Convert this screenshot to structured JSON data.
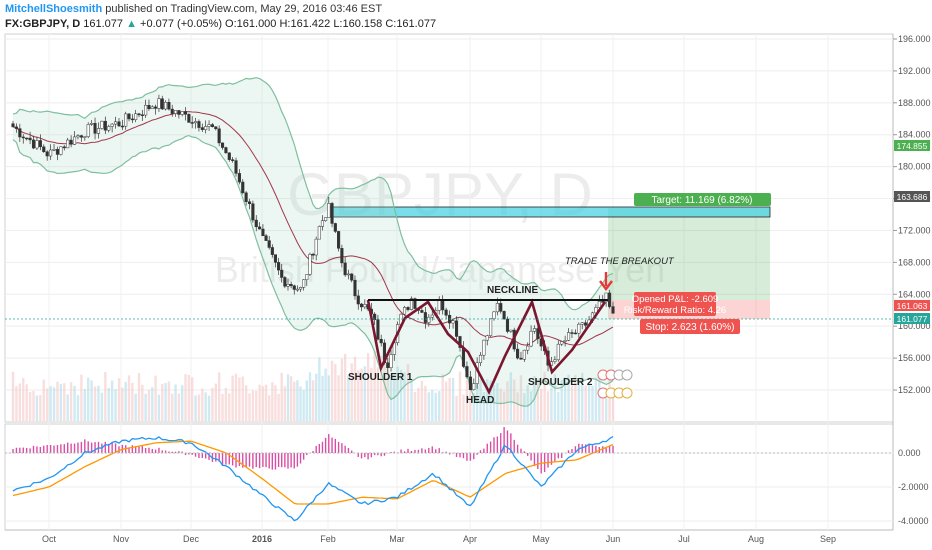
{
  "header": {
    "author": "MitchellShoesmith",
    "published": "published on TradingView.com, May 29, 2016 03:46 EST"
  },
  "symbol": {
    "name": "FX:GBPJPY, D",
    "last": "161.077",
    "change": "+0.077 (+0.05%)",
    "o": "O:161.000",
    "h": "H:161.422",
    "l": "L:160.158",
    "c": "C:161.077"
  },
  "watermark": {
    "line1": "GBPJPY, D",
    "line2": "British Pound/Japanese Yen"
  },
  "colors": {
    "up": "#26a69a",
    "down": "#ef5350",
    "band": "#7fbf9f",
    "macd": "#2196f3",
    "signal": "#ff9800",
    "hist": "#d84ea4",
    "target": "#4caf50",
    "stop": "#ef5350",
    "channel": "#40d0e0"
  },
  "annotations": {
    "shoulder1": "SHOULDER 1",
    "head": "HEAD",
    "shoulder2": "SHOULDER 2",
    "neckline": "NECKLINE",
    "breakout": "TRADE THE BREAKOUT",
    "target": "Target: 11.169 (6.82%)",
    "opened_pl": "Opened P&L: -2.609",
    "rr": "Risk/Reward Ratio: 4.26",
    "stop": "Stop: 2.623 (1.60%)"
  },
  "price_badges": [
    "174.855",
    "163.686",
    "161.063",
    "161.077"
  ],
  "chart_data": [
    {
      "type": "candlestick",
      "x_axis_labels": [
        "Oct",
        "Nov",
        "Dec",
        "2016",
        "Feb",
        "Mar",
        "Apr",
        "May",
        "Jun",
        "Jul",
        "Aug",
        "Sep"
      ],
      "y_ticks": [
        152,
        156,
        160,
        164,
        168,
        172,
        176,
        180,
        184,
        188,
        192,
        196
      ],
      "y_tick_labels": [
        "152.000",
        "156.000",
        "160.000",
        "164.000",
        "168.000",
        "172.000",
        "176.000",
        "180.000",
        "184.000",
        "188.000",
        "192.000",
        "196.000"
      ],
      "ylim": [
        148.5,
        197.5
      ],
      "close_path": {
        "months": [
          -0.5,
          0,
          0.5,
          1,
          1.5,
          2,
          2.3,
          2.6,
          3,
          3.3,
          3.6,
          3.85,
          4,
          4.2,
          4.4,
          4.65,
          4.85,
          5,
          5.2,
          5.4,
          5.6,
          5.8,
          6,
          6.2,
          6.4,
          6.7,
          6.9,
          7.1,
          7.3,
          7.6,
          7.9,
          8
        ],
        "prices": [
          185,
          181.5,
          184.5,
          185.5,
          188,
          186,
          184.8,
          180,
          171,
          166,
          164.5,
          172,
          175,
          168,
          164,
          161,
          155,
          160,
          163.5,
          161,
          163,
          160,
          152,
          158,
          163,
          156,
          160,
          155,
          158,
          160,
          163.5,
          161.1
        ]
      },
      "neckline": 163.5,
      "target_level": 174.855,
      "stop_level": 161.063,
      "pattern_points": [
        {
          "label": "SHOULDER 1",
          "price": 155
        },
        {
          "label": "HEAD",
          "price": 152
        },
        {
          "label": "SHOULDER 2",
          "price": 155
        }
      ]
    },
    {
      "type": "line",
      "series": [
        {
          "name": "MACD",
          "x": [
            -0.5,
            0,
            0.5,
            1,
            1.5,
            2,
            2.5,
            3,
            3.5,
            4,
            4.5,
            5,
            5.5,
            6,
            6.5,
            7,
            7.5,
            8
          ],
          "values": [
            -2.2,
            -1.5,
            0,
            0.7,
            0.9,
            0.6,
            -0.8,
            -2.5,
            -4,
            -1.8,
            -3,
            -2.6,
            -1.2,
            -3.2,
            0.5,
            -2,
            0.2,
            0.9
          ]
        },
        {
          "name": "Signal",
          "x": [
            -0.5,
            0,
            0.5,
            1,
            1.5,
            2,
            2.5,
            3,
            3.5,
            4,
            4.5,
            5,
            5.5,
            6,
            6.5,
            7,
            7.5,
            8
          ],
          "values": [
            -2.5,
            -2,
            -0.8,
            0.2,
            0.6,
            0.7,
            0,
            -1.5,
            -3,
            -3,
            -2.6,
            -2.7,
            -1.6,
            -2.6,
            -1.2,
            -0.6,
            -0.4,
            0.5
          ]
        }
      ],
      "y_ticks": [
        0,
        -2,
        -4
      ],
      "y_tick_labels": [
        "0.000",
        "-2.0000",
        "-4.0000"
      ],
      "ylim": [
        -4.5,
        1.8
      ]
    }
  ]
}
